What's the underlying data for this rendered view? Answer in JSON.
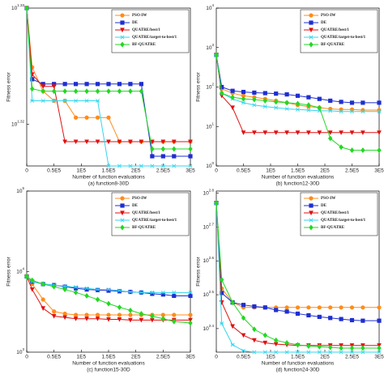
{
  "chart_data": [
    {
      "type": "line",
      "caption": "(a) function8-30D",
      "x_label": "Number of function evaluations",
      "y_label": "Fitness error",
      "log_y": true,
      "legend": "upper right",
      "x": [
        0,
        10000,
        30000,
        50000,
        70000,
        90000,
        110000,
        130000,
        150000,
        170000,
        190000,
        210000,
        230000,
        250000,
        270000,
        300000
      ],
      "xlim": [
        0,
        300000
      ],
      "xticks": [
        0,
        {
          "value": 50000,
          "label": "0.5E5"
        },
        {
          "value": 100000,
          "label": "1E5"
        },
        {
          "value": 150000,
          "label": "1.5E5"
        },
        {
          "value": 200000,
          "label": "2E5"
        },
        {
          "value": 250000,
          "label": "2.5E5"
        },
        {
          "value": 300000,
          "label": "3E5"
        }
      ],
      "ylim": [
        20.72,
        21.38
      ],
      "yticks": [
        {
          "value": 20.893,
          "label": "10",
          "exponent": "1.32"
        },
        {
          "value": 21.38,
          "label": "10",
          "exponent": "1.33"
        }
      ],
      "series": [
        {
          "name": "PSO-IW",
          "color": "#ff8c1a",
          "marker": "circle",
          "values": [
            21.38,
            21.13,
            21.03,
            20.99,
            20.99,
            20.92,
            20.92,
            20.92,
            20.92,
            20.82,
            20.82,
            20.82,
            20.82,
            20.82,
            20.82,
            20.82
          ]
        },
        {
          "name": "DE",
          "color": "#1f2fd0",
          "marker": "square",
          "values": [
            21.38,
            21.08,
            21.06,
            21.06,
            21.06,
            21.06,
            21.06,
            21.06,
            21.06,
            21.06,
            21.06,
            21.06,
            20.76,
            20.76,
            20.76,
            20.76
          ]
        },
        {
          "name": "QUATRE/best/1",
          "color": "#e01010",
          "marker": "triangle",
          "values": [
            21.38,
            21.1,
            21.05,
            21.05,
            20.82,
            20.82,
            20.82,
            20.82,
            20.82,
            20.82,
            20.82,
            20.82,
            20.82,
            20.82,
            20.82,
            20.82
          ]
        },
        {
          "name": "QUATRE/target-to-best/1",
          "color": "#33d6ee",
          "marker": "cross",
          "values": [
            21.38,
            20.99,
            20.99,
            20.99,
            20.99,
            20.99,
            20.99,
            20.99,
            20.72,
            20.72,
            20.72,
            20.72,
            20.72,
            20.72,
            20.72,
            20.72
          ]
        },
        {
          "name": "BF-QUATRE",
          "color": "#22d822",
          "marker": "diamond",
          "values": [
            21.38,
            21.04,
            21.03,
            21.03,
            21.03,
            21.03,
            21.03,
            21.03,
            21.03,
            21.03,
            21.03,
            21.03,
            20.79,
            20.79,
            20.79,
            20.79
          ]
        }
      ]
    },
    {
      "type": "line",
      "caption": "(b) function12-30D",
      "x_label": "Number of function evaluations",
      "y_label": "Fitness error",
      "log_y": true,
      "legend": "upper right",
      "x": [
        0,
        10000,
        30000,
        50000,
        70000,
        90000,
        110000,
        130000,
        150000,
        170000,
        190000,
        210000,
        230000,
        250000,
        270000,
        300000
      ],
      "xlim": [
        0,
        300000
      ],
      "xticks": [
        0,
        {
          "value": 50000,
          "label": "0.5E5"
        },
        {
          "value": 100000,
          "label": "1E5"
        },
        {
          "value": 150000,
          "label": "1.5E5"
        },
        {
          "value": 200000,
          "label": "2E5"
        },
        {
          "value": 250000,
          "label": "2.5E5"
        },
        {
          "value": 300000,
          "label": "3E5"
        }
      ],
      "ylim": [
        1,
        10000
      ],
      "yticks": [
        {
          "value": 1,
          "label": "10",
          "exponent": "0"
        },
        {
          "value": 10,
          "label": "10",
          "exponent": "1"
        },
        {
          "value": 100,
          "label": "10",
          "exponent": "2"
        },
        {
          "value": 1000,
          "label": "10",
          "exponent": "3"
        },
        {
          "value": 10000,
          "label": "10",
          "exponent": "4"
        }
      ],
      "series": [
        {
          "name": "PSO-IW",
          "color": "#ff8c1a",
          "marker": "circle",
          "values": [
            650,
            90,
            70,
            60,
            55,
            50,
            45,
            40,
            35,
            32,
            30,
            28,
            27,
            27,
            26,
            26
          ]
        },
        {
          "name": "DE",
          "color": "#1f2fd0",
          "marker": "square",
          "values": [
            650,
            100,
            80,
            75,
            72,
            70,
            68,
            65,
            60,
            55,
            50,
            45,
            42,
            40,
            40,
            40
          ]
        },
        {
          "name": "QUATRE/best/1",
          "color": "#e01010",
          "marker": "triangle",
          "values": [
            650,
            60,
            30,
            7,
            7,
            7,
            7,
            7,
            7,
            7,
            7,
            7,
            7,
            7,
            7,
            7
          ]
        },
        {
          "name": "QUATRE/target-to-best/1",
          "color": "#33d6ee",
          "marker": "cross",
          "values": [
            650,
            70,
            50,
            40,
            35,
            32,
            30,
            28,
            27,
            26,
            25,
            25,
            24,
            24,
            24,
            24
          ]
        },
        {
          "name": "BF-QUATRE",
          "color": "#22d822",
          "marker": "diamond",
          "values": [
            650,
            70,
            55,
            50,
            48,
            45,
            42,
            40,
            38,
            35,
            30,
            5,
            3,
            2.5,
            2.5,
            2.5
          ]
        }
      ]
    },
    {
      "type": "line",
      "caption": "(c) function15-30D",
      "x_label": "Number of function evaluations",
      "y_label": "Fitness error",
      "log_y": true,
      "legend": "upper right",
      "x": [
        0,
        10000,
        30000,
        50000,
        70000,
        90000,
        110000,
        130000,
        150000,
        170000,
        190000,
        210000,
        230000,
        250000,
        270000,
        300000
      ],
      "xlim": [
        0,
        300000
      ],
      "xticks": [
        0,
        {
          "value": 50000,
          "label": "0.5E5"
        },
        {
          "value": 100000,
          "label": "1E5"
        },
        {
          "value": 150000,
          "label": "1.5E5"
        },
        {
          "value": 200000,
          "label": "2E5"
        },
        {
          "value": 250000,
          "label": "2.5E5"
        },
        {
          "value": 300000,
          "label": "3E5"
        }
      ],
      "ylim": [
        1000,
        100000
      ],
      "yticks": [
        {
          "value": 1000,
          "label": "10",
          "exponent": "3"
        },
        {
          "value": 10000,
          "label": "10",
          "exponent": "4"
        },
        {
          "value": 100000,
          "label": "10",
          "exponent": "5"
        }
      ],
      "series": [
        {
          "name": "PSO-IW",
          "color": "#ff8c1a",
          "marker": "circle",
          "values": [
            8700,
            7000,
            4500,
            3200,
            3000,
            2900,
            2900,
            2900,
            2900,
            2900,
            2900,
            2900,
            2900,
            2900,
            2900,
            2900
          ]
        },
        {
          "name": "DE",
          "color": "#1f2fd0",
          "marker": "square",
          "values": [
            8700,
            7500,
            7000,
            6800,
            6500,
            6200,
            6000,
            5900,
            5800,
            5700,
            5600,
            5500,
            5300,
            5200,
            5000,
            5000
          ]
        },
        {
          "name": "QUATRE/best/1",
          "color": "#e01010",
          "marker": "triangle",
          "values": [
            8700,
            6000,
            3500,
            2800,
            2700,
            2600,
            2600,
            2600,
            2550,
            2550,
            2500,
            2500,
            2500,
            2500,
            2500,
            2500
          ]
        },
        {
          "name": "QUATRE/target-to-best/1",
          "color": "#33d6ee",
          "marker": "cross",
          "values": [
            8700,
            7500,
            7000,
            6800,
            6600,
            6400,
            6200,
            6000,
            6000,
            5800,
            5600,
            5500,
            5500,
            5500,
            5500,
            5500
          ]
        },
        {
          "name": "BF-QUATRE",
          "color": "#22d822",
          "marker": "diamond",
          "values": [
            8700,
            7800,
            7000,
            6500,
            6000,
            5500,
            5000,
            4500,
            4000,
            3600,
            3300,
            3000,
            2800,
            2600,
            2400,
            2300
          ]
        }
      ]
    },
    {
      "type": "line",
      "caption": "(d) function24-30D",
      "x_label": "Number of function evaluations",
      "y_label": "Fitness error",
      "log_y": true,
      "legend": "upper right",
      "x": [
        0,
        10000,
        30000,
        50000,
        70000,
        90000,
        110000,
        130000,
        150000,
        170000,
        190000,
        210000,
        230000,
        250000,
        270000,
        300000
      ],
      "xlim": [
        0,
        300000
      ],
      "xticks": [
        0,
        {
          "value": 50000,
          "label": "0.5E5"
        },
        {
          "value": 100000,
          "label": "1E5"
        },
        {
          "value": 150000,
          "label": "1.5E5"
        },
        {
          "value": 200000,
          "label": "2E5"
        },
        {
          "value": 250000,
          "label": "2.5E5"
        },
        {
          "value": 300000,
          "label": "3E5"
        }
      ],
      "ylim": [
        214,
        640
      ],
      "yticks": [
        {
          "value": 251.19,
          "label": "10",
          "exponent": "2.4"
        },
        {
          "value": 316.23,
          "label": "10",
          "exponent": "2.5"
        },
        {
          "value": 398.11,
          "label": "10",
          "exponent": "2.6"
        },
        {
          "value": 501.19,
          "label": "10",
          "exponent": "2.7"
        },
        {
          "value": 630.96,
          "label": "10",
          "exponent": "2.8"
        }
      ],
      "series": [
        {
          "name": "PSO-IW",
          "color": "#ff8c1a",
          "marker": "circle",
          "values": [
            590,
            330,
            300,
            290,
            290,
            290,
            290,
            290,
            290,
            290,
            290,
            290,
            290,
            290,
            290,
            290
          ]
        },
        {
          "name": "DE",
          "color": "#1f2fd0",
          "marker": "square",
          "values": [
            590,
            320,
            300,
            295,
            292,
            290,
            285,
            282,
            278,
            275,
            272,
            270,
            268,
            266,
            265,
            265
          ]
        },
        {
          "name": "QUATRE/best/1",
          "color": "#e01010",
          "marker": "triangle",
          "values": [
            590,
            300,
            255,
            240,
            232,
            228,
            226,
            225,
            224,
            224,
            224,
            224,
            224,
            224,
            224,
            224
          ]
        },
        {
          "name": "QUATRE/target-to-best/1",
          "color": "#33d6ee",
          "marker": "cross",
          "values": [
            590,
            260,
            225,
            216,
            214,
            214,
            214,
            214,
            214,
            214,
            214,
            214,
            214,
            214,
            214,
            214
          ]
        },
        {
          "name": "BF-QUATRE",
          "color": "#22d822",
          "marker": "diamond",
          "values": [
            590,
            350,
            300,
            270,
            250,
            240,
            232,
            228,
            225,
            223,
            222,
            221,
            220,
            220,
            220,
            220
          ]
        }
      ]
    }
  ]
}
